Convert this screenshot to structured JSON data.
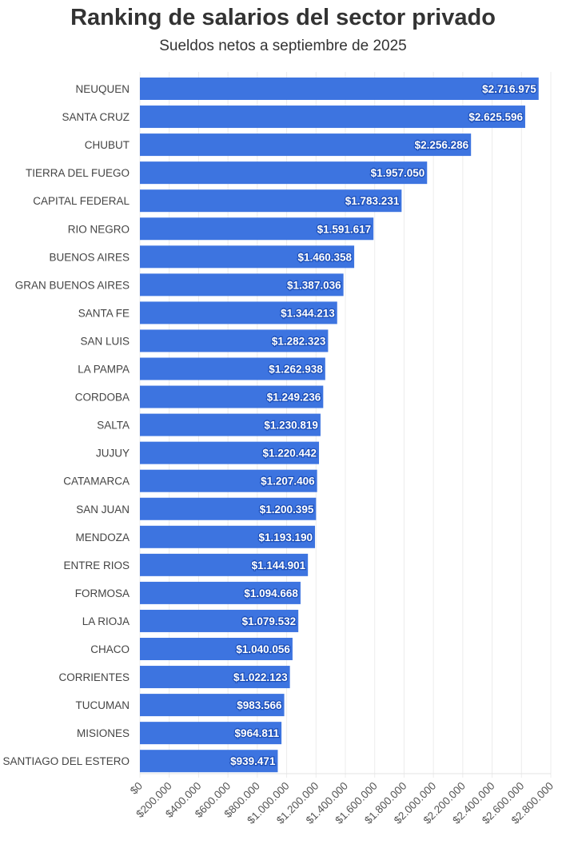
{
  "chart_data": {
    "type": "bar",
    "orientation": "horizontal",
    "title": "Ranking de salarios del sector privado",
    "subtitle": "Sueldos netos a septiembre de 2025",
    "categories": [
      "NEUQUEN",
      "SANTA CRUZ",
      "CHUBUT",
      "TIERRA DEL FUEGO",
      "CAPITAL FEDERAL",
      "RIO NEGRO",
      "BUENOS AIRES",
      "GRAN BUENOS AIRES",
      "SANTA FE",
      "SAN LUIS",
      "LA PAMPA",
      "CORDOBA",
      "SALTA",
      "JUJUY",
      "CATAMARCA",
      "SAN JUAN",
      "MENDOZA",
      "ENTRE RIOS",
      "FORMOSA",
      "LA RIOJA",
      "CHACO",
      "CORRIENTES",
      "TUCUMAN",
      "MISIONES",
      "SANTIAGO DEL ESTERO"
    ],
    "values": [
      2716975,
      2625596,
      2256286,
      1957050,
      1783231,
      1591617,
      1460358,
      1387036,
      1344213,
      1282323,
      1262938,
      1249236,
      1230819,
      1220442,
      1207406,
      1200395,
      1193190,
      1144901,
      1094668,
      1079532,
      1040056,
      1022123,
      983566,
      964811,
      939471
    ],
    "data_labels": [
      "$2.716.975",
      "$2.625.596",
      "$2.256.286",
      "$1.957.050",
      "$1.783.231",
      "$1.591.617",
      "$1.460.358",
      "$1.387.036",
      "$1.344.213",
      "$1.282.323",
      "$1.262.938",
      "$1.249.236",
      "$1.230.819",
      "$1.220.442",
      "$1.207.406",
      "$1.200.395",
      "$1.193.190",
      "$1.144.901",
      "$1.094.668",
      "$1.079.532",
      "$1.040.056",
      "$1.022.123",
      "$983.566",
      "$964.811",
      "$939.471"
    ],
    "xlim": [
      0,
      2800000
    ],
    "x_ticks": [
      0,
      200000,
      400000,
      600000,
      800000,
      1000000,
      1200000,
      1400000,
      1600000,
      1800000,
      2000000,
      2200000,
      2400000,
      2600000,
      2800000
    ],
    "x_tick_labels": [
      "$0",
      "$200.000",
      "$400.000",
      "$600.000",
      "$800.000",
      "$1.000.000",
      "$1.200.000",
      "$1.400.000",
      "$1.600.000",
      "$1.800.000",
      "$2.000.000",
      "$2.200.000",
      "$2.400.000",
      "$2.600.000",
      "$2.800.000"
    ],
    "xlabel": "",
    "ylabel": "",
    "grid": true,
    "bar_color": "#3d74e0"
  }
}
